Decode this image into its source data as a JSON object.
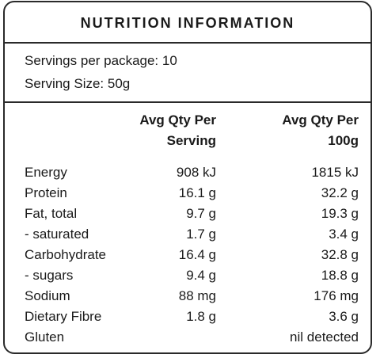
{
  "title": "NUTRITION INFORMATION",
  "servings": {
    "per_package": "Servings per package: 10",
    "serving_size": "Serving Size: 50g"
  },
  "columns": {
    "per_serving_line1": "Avg Qty Per",
    "per_serving_line2": "Serving",
    "per_100g_line1": "Avg Qty Per",
    "per_100g_line2": "100g"
  },
  "rows": [
    {
      "name": "Energy",
      "per_serving": "908 kJ",
      "per_100g": "1815 kJ"
    },
    {
      "name": "Protein",
      "per_serving": "16.1 g",
      "per_100g": "32.2 g"
    },
    {
      "name": "Fat, total",
      "per_serving": "9.7 g",
      "per_100g": "19.3 g"
    },
    {
      "name": "- saturated",
      "per_serving": "1.7 g",
      "per_100g": "3.4 g"
    },
    {
      "name": "Carbohydrate",
      "per_serving": "16.4 g",
      "per_100g": "32.8 g"
    },
    {
      "name": "- sugars",
      "per_serving": "9.4 g",
      "per_100g": "18.8 g"
    },
    {
      "name": "Sodium",
      "per_serving": "88 mg",
      "per_100g": "176 mg"
    },
    {
      "name": "Dietary Fibre",
      "per_serving": "1.8 g",
      "per_100g": "3.6 g"
    },
    {
      "name": "Gluten",
      "per_serving": "",
      "per_100g": "nil detected"
    }
  ]
}
